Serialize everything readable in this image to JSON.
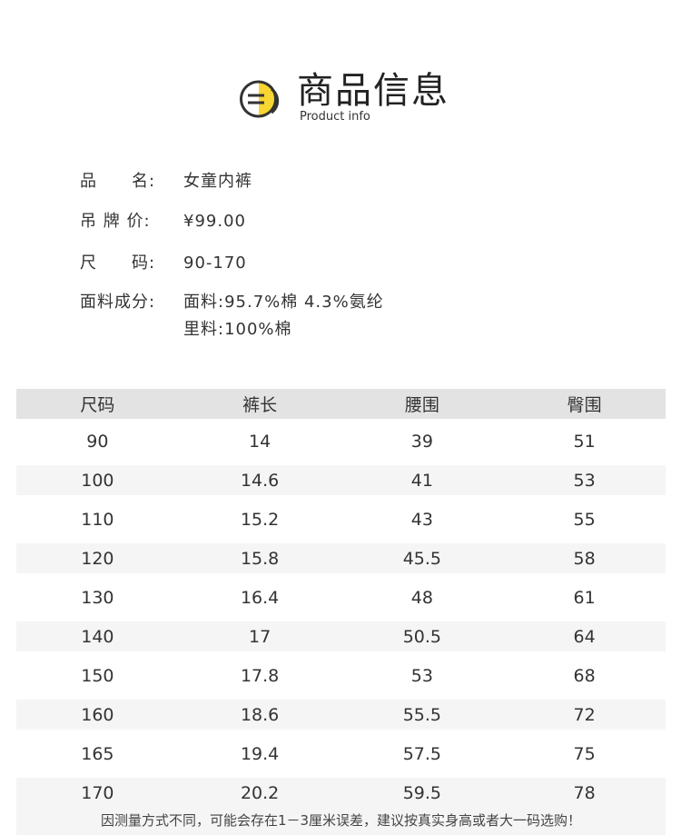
{
  "header": {
    "title": "商品信息",
    "subtitle": "Product info",
    "icon": "list-badge-icon",
    "accent": "#f7d631"
  },
  "info": [
    {
      "label": "品　　名:",
      "value": "女童内裤"
    },
    {
      "label": "吊 牌 价:",
      "value": "¥99.00"
    },
    {
      "label": "尺　　码:",
      "value": "90-170"
    },
    {
      "label": "面料成分:",
      "value": "面料:95.7%棉 4.3%氨纶"
    },
    {
      "label": "",
      "value": "里料:100%棉"
    }
  ],
  "table": {
    "headers": [
      "尺码",
      "裤长",
      "腰围",
      "臀围"
    ],
    "rows": [
      [
        "90",
        "14",
        "39",
        "51"
      ],
      [
        "100",
        "14.6",
        "41",
        "53"
      ],
      [
        "110",
        "15.2",
        "43",
        "55"
      ],
      [
        "120",
        "15.8",
        "45.5",
        "58"
      ],
      [
        "130",
        "16.4",
        "48",
        "61"
      ],
      [
        "140",
        "17",
        "50.5",
        "64"
      ],
      [
        "150",
        "17.8",
        "53",
        "68"
      ],
      [
        "160",
        "18.6",
        "55.5",
        "72"
      ],
      [
        "165",
        "19.4",
        "57.5",
        "75"
      ],
      [
        "170",
        "20.2",
        "59.5",
        "78"
      ]
    ]
  },
  "note": "因测量方式不同，可能会存在1－3厘米误差，建议按真实身高或者大一码选购！"
}
